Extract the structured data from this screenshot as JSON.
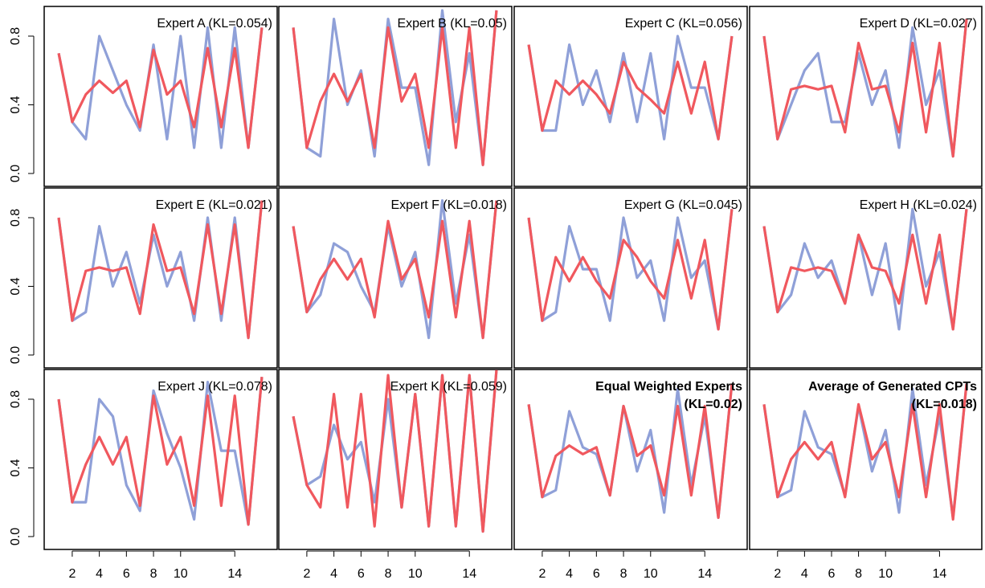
{
  "chart_data": [
    {
      "type": "line",
      "title": "Expert A (KL=0.054)",
      "x": [
        1,
        2,
        3,
        4,
        5,
        6,
        7,
        8,
        9,
        10,
        11,
        12,
        13,
        14,
        15,
        16
      ],
      "xlim": [
        -0.07,
        17.13
      ],
      "ylim": [
        -0.075,
        0.973
      ],
      "yticks": [
        {
          "value": 0,
          "label": "0.0"
        },
        {
          "value": 0.4,
          "label": "0.4"
        },
        {
          "value": 0.8,
          "label": "0.8"
        }
      ],
      "series": [
        {
          "color": "#8fa0d8",
          "values": [
            0.7,
            0.3,
            0.2,
            0.8,
            0.6,
            0.4,
            0.25,
            0.75,
            0.2,
            0.8,
            0.15,
            0.85,
            0.15,
            0.85,
            0.15,
            0.85
          ]
        },
        {
          "color": "#f0585e",
          "values": [
            0.7,
            0.3,
            0.46,
            0.54,
            0.47,
            0.54,
            0.27,
            0.72,
            0.46,
            0.54,
            0.27,
            0.73,
            0.27,
            0.73,
            0.15,
            0.85
          ]
        }
      ]
    },
    {
      "type": "line",
      "title": "Expert B (KL=0.05)",
      "x": [
        1,
        2,
        3,
        4,
        5,
        6,
        7,
        8,
        9,
        10,
        11,
        12,
        13,
        14,
        15,
        16
      ],
      "xlim": [
        -0.07,
        17.13
      ],
      "ylim": [
        -0.075,
        0.973
      ],
      "series": [
        {
          "color": "#8fa0d8",
          "values": [
            0.85,
            0.15,
            0.1,
            0.9,
            0.4,
            0.6,
            0.1,
            0.9,
            0.5,
            0.5,
            0.05,
            0.95,
            0.3,
            0.7,
            0.05,
            0.95
          ]
        },
        {
          "color": "#f0585e",
          "values": [
            0.85,
            0.15,
            0.42,
            0.58,
            0.42,
            0.58,
            0.15,
            0.85,
            0.42,
            0.58,
            0.15,
            0.85,
            0.15,
            0.85,
            0.05,
            0.95
          ]
        }
      ]
    },
    {
      "type": "line",
      "title": "Expert C (KL=0.056)",
      "x": [
        1,
        2,
        3,
        4,
        5,
        6,
        7,
        8,
        9,
        10,
        11,
        12,
        13,
        14,
        15,
        16
      ],
      "xlim": [
        -0.07,
        17.13
      ],
      "ylim": [
        -0.075,
        0.973
      ],
      "series": [
        {
          "color": "#8fa0d8",
          "values": [
            0.75,
            0.25,
            0.25,
            0.75,
            0.4,
            0.6,
            0.3,
            0.7,
            0.3,
            0.7,
            0.2,
            0.8,
            0.5,
            0.5,
            0.2,
            0.8
          ]
        },
        {
          "color": "#f0585e",
          "values": [
            0.75,
            0.25,
            0.54,
            0.46,
            0.54,
            0.46,
            0.35,
            0.65,
            0.5,
            0.43,
            0.35,
            0.65,
            0.35,
            0.65,
            0.2,
            0.8
          ]
        }
      ]
    },
    {
      "type": "line",
      "title": "Expert D (KL=0.027)",
      "x": [
        1,
        2,
        3,
        4,
        5,
        6,
        7,
        8,
        9,
        10,
        11,
        12,
        13,
        14,
        15,
        16
      ],
      "xlim": [
        -0.07,
        17.13
      ],
      "ylim": [
        -0.075,
        0.973
      ],
      "series": [
        {
          "color": "#8fa0d8",
          "values": [
            0.8,
            0.2,
            0.4,
            0.6,
            0.7,
            0.3,
            0.3,
            0.7,
            0.4,
            0.6,
            0.15,
            0.85,
            0.4,
            0.6,
            0.1,
            0.9
          ]
        },
        {
          "color": "#f0585e",
          "values": [
            0.8,
            0.2,
            0.49,
            0.51,
            0.49,
            0.51,
            0.24,
            0.76,
            0.49,
            0.51,
            0.24,
            0.76,
            0.24,
            0.76,
            0.1,
            0.9
          ]
        }
      ]
    },
    {
      "type": "line",
      "title": "Expert E (KL=0.021)",
      "x": [
        1,
        2,
        3,
        4,
        5,
        6,
        7,
        8,
        9,
        10,
        11,
        12,
        13,
        14,
        15,
        16
      ],
      "xlim": [
        -0.07,
        17.13
      ],
      "ylim": [
        -0.075,
        0.973
      ],
      "yticks": [
        {
          "value": 0,
          "label": "0.0"
        },
        {
          "value": 0.4,
          "label": "0.4"
        },
        {
          "value": 0.8,
          "label": "0.8"
        }
      ],
      "series": [
        {
          "color": "#8fa0d8",
          "values": [
            0.8,
            0.2,
            0.25,
            0.75,
            0.4,
            0.6,
            0.3,
            0.7,
            0.4,
            0.6,
            0.2,
            0.8,
            0.2,
            0.8,
            0.1,
            0.9
          ]
        },
        {
          "color": "#f0585e",
          "values": [
            0.8,
            0.2,
            0.49,
            0.51,
            0.49,
            0.51,
            0.24,
            0.76,
            0.49,
            0.51,
            0.24,
            0.76,
            0.24,
            0.76,
            0.1,
            0.9
          ]
        }
      ]
    },
    {
      "type": "line",
      "title": "Expert F (KL=0.018)",
      "x": [
        1,
        2,
        3,
        4,
        5,
        6,
        7,
        8,
        9,
        10,
        11,
        12,
        13,
        14,
        15,
        16
      ],
      "xlim": [
        -0.07,
        17.13
      ],
      "ylim": [
        -0.075,
        0.973
      ],
      "series": [
        {
          "color": "#8fa0d8",
          "values": [
            0.75,
            0.25,
            0.35,
            0.65,
            0.6,
            0.4,
            0.25,
            0.75,
            0.4,
            0.6,
            0.1,
            0.9,
            0.3,
            0.7,
            0.1,
            0.9
          ]
        },
        {
          "color": "#f0585e",
          "values": [
            0.75,
            0.25,
            0.44,
            0.56,
            0.44,
            0.56,
            0.22,
            0.78,
            0.44,
            0.56,
            0.22,
            0.78,
            0.22,
            0.78,
            0.1,
            0.9
          ]
        }
      ]
    },
    {
      "type": "line",
      "title": "Expert G (KL=0.045)",
      "x": [
        1,
        2,
        3,
        4,
        5,
        6,
        7,
        8,
        9,
        10,
        11,
        12,
        13,
        14,
        15,
        16
      ],
      "xlim": [
        -0.07,
        17.13
      ],
      "ylim": [
        -0.075,
        0.973
      ],
      "series": [
        {
          "color": "#8fa0d8",
          "values": [
            0.8,
            0.2,
            0.25,
            0.75,
            0.5,
            0.5,
            0.2,
            0.8,
            0.45,
            0.55,
            0.2,
            0.8,
            0.45,
            0.55,
            0.15,
            0.85
          ]
        },
        {
          "color": "#f0585e",
          "values": [
            0.8,
            0.2,
            0.57,
            0.43,
            0.57,
            0.43,
            0.33,
            0.67,
            0.57,
            0.43,
            0.33,
            0.67,
            0.33,
            0.67,
            0.15,
            0.85
          ]
        }
      ]
    },
    {
      "type": "line",
      "title": "Expert H (KL=0.024)",
      "x": [
        1,
        2,
        3,
        4,
        5,
        6,
        7,
        8,
        9,
        10,
        11,
        12,
        13,
        14,
        15,
        16
      ],
      "xlim": [
        -0.07,
        17.13
      ],
      "ylim": [
        -0.075,
        0.973
      ],
      "series": [
        {
          "color": "#8fa0d8",
          "values": [
            0.75,
            0.25,
            0.35,
            0.65,
            0.45,
            0.55,
            0.3,
            0.7,
            0.35,
            0.65,
            0.15,
            0.85,
            0.4,
            0.6,
            0.15,
            0.85
          ]
        },
        {
          "color": "#f0585e",
          "values": [
            0.75,
            0.25,
            0.51,
            0.49,
            0.51,
            0.49,
            0.3,
            0.7,
            0.51,
            0.49,
            0.3,
            0.7,
            0.3,
            0.7,
            0.15,
            0.85
          ]
        }
      ]
    },
    {
      "type": "line",
      "title": "Expert J (KL=0.078)",
      "x": [
        1,
        2,
        3,
        4,
        5,
        6,
        7,
        8,
        9,
        10,
        11,
        12,
        13,
        14,
        15,
        16
      ],
      "xlim": [
        -0.07,
        17.13
      ],
      "ylim": [
        -0.075,
        0.973
      ],
      "yticks": [
        {
          "value": 0,
          "label": "0.0"
        },
        {
          "value": 0.4,
          "label": "0.4"
        },
        {
          "value": 0.8,
          "label": "0.8"
        }
      ],
      "xticks": [
        2,
        4,
        6,
        8,
        10,
        14
      ],
      "series": [
        {
          "color": "#8fa0d8",
          "values": [
            0.8,
            0.2,
            0.2,
            0.8,
            0.7,
            0.3,
            0.15,
            0.85,
            0.6,
            0.4,
            0.1,
            0.9,
            0.5,
            0.5,
            0.07,
            0.93
          ]
        },
        {
          "color": "#f0585e",
          "values": [
            0.8,
            0.2,
            0.42,
            0.58,
            0.42,
            0.58,
            0.18,
            0.82,
            0.42,
            0.58,
            0.18,
            0.82,
            0.18,
            0.82,
            0.07,
            0.93
          ]
        }
      ]
    },
    {
      "type": "line",
      "title": "Expert K (KL=0.059)",
      "x": [
        1,
        2,
        3,
        4,
        5,
        6,
        7,
        8,
        9,
        10,
        11,
        12,
        13,
        14,
        15,
        16
      ],
      "xlim": [
        -0.07,
        17.13
      ],
      "ylim": [
        -0.075,
        0.973
      ],
      "xticks": [
        2,
        4,
        6,
        8,
        10,
        14
      ],
      "series": [
        {
          "color": "#8fa0d8",
          "values": [
            0.7,
            0.3,
            0.35,
            0.65,
            0.45,
            0.55,
            0.2,
            0.8,
            0.17,
            0.83,
            0.06,
            0.94,
            0.06,
            0.94,
            0.03,
            0.97
          ]
        },
        {
          "color": "#f0585e",
          "values": [
            0.7,
            0.3,
            0.17,
            0.83,
            0.17,
            0.83,
            0.06,
            0.94,
            0.17,
            0.83,
            0.06,
            0.94,
            0.06,
            0.94,
            0.03,
            0.97
          ]
        }
      ]
    },
    {
      "type": "line",
      "title": "Equal Weighted Experts",
      "subtitle": "(KL=0.02)",
      "bold_title": true,
      "x": [
        1,
        2,
        3,
        4,
        5,
        6,
        7,
        8,
        9,
        10,
        11,
        12,
        13,
        14,
        15,
        16
      ],
      "xlim": [
        -0.07,
        17.13
      ],
      "ylim": [
        -0.075,
        0.973
      ],
      "xticks": [
        2,
        4,
        6,
        8,
        10,
        14
      ],
      "series": [
        {
          "color": "#8fa0d8",
          "values": [
            0.77,
            0.23,
            0.27,
            0.73,
            0.52,
            0.48,
            0.24,
            0.76,
            0.38,
            0.62,
            0.14,
            0.86,
            0.3,
            0.7,
            0.11,
            0.89
          ]
        },
        {
          "color": "#f0585e",
          "values": [
            0.77,
            0.23,
            0.47,
            0.53,
            0.48,
            0.52,
            0.24,
            0.76,
            0.47,
            0.53,
            0.24,
            0.76,
            0.24,
            0.76,
            0.11,
            0.89
          ]
        }
      ]
    },
    {
      "type": "line",
      "title": "Average of Generated CPTs",
      "subtitle": "(KL=0.018)",
      "bold_title": true,
      "x": [
        1,
        2,
        3,
        4,
        5,
        6,
        7,
        8,
        9,
        10,
        11,
        12,
        13,
        14,
        15,
        16
      ],
      "xlim": [
        -0.07,
        17.13
      ],
      "ylim": [
        -0.075,
        0.973
      ],
      "xticks": [
        2,
        4,
        6,
        8,
        10,
        14
      ],
      "series": [
        {
          "color": "#8fa0d8",
          "values": [
            0.77,
            0.23,
            0.27,
            0.73,
            0.52,
            0.48,
            0.24,
            0.76,
            0.38,
            0.62,
            0.14,
            0.86,
            0.3,
            0.7,
            0.11,
            0.89
          ]
        },
        {
          "color": "#f0585e",
          "values": [
            0.77,
            0.23,
            0.45,
            0.55,
            0.45,
            0.55,
            0.23,
            0.77,
            0.45,
            0.55,
            0.23,
            0.77,
            0.23,
            0.77,
            0.1,
            0.89
          ]
        }
      ]
    }
  ]
}
